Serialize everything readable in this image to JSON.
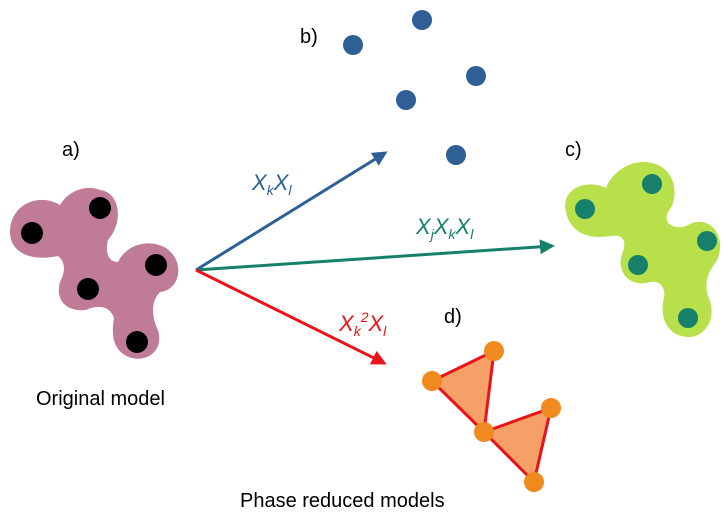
{
  "panels": {
    "a": "a)",
    "b": "b)",
    "c": "c)",
    "d": "d)"
  },
  "captions": {
    "original": "Original model",
    "reduced": "Phase reduced models"
  },
  "arrows": {
    "blue": {
      "base": "X",
      "s1": "k",
      "s2": "X",
      "s3": "l"
    },
    "green": {
      "base": "X",
      "s1": "j",
      "s2": "X",
      "s3": "k",
      "s4": "X",
      "s5": "l"
    },
    "red": {
      "base": "X",
      "s1": "k",
      "sup": "2",
      "s2": "X",
      "s3": "l"
    }
  },
  "colors": {
    "blue": "#2e5f95",
    "green": "#16806a",
    "red": "#e8141b",
    "pink_body": "#c07c96",
    "lime_body": "#b7e04a",
    "orange": "#f5a066",
    "orange_node": "#f08a1e"
  }
}
